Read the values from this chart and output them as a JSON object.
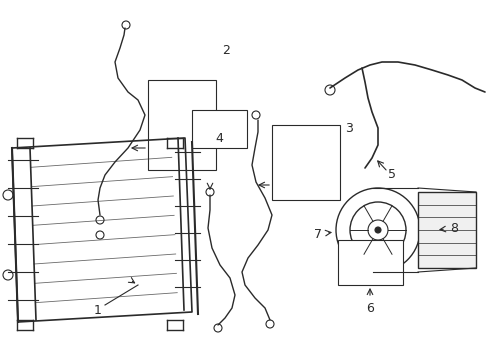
{
  "background_color": "#ffffff",
  "line_color": "#2a2a2a",
  "fig_width": 4.9,
  "fig_height": 3.6,
  "dpi": 100,
  "xlim": [
    0,
    490
  ],
  "ylim": [
    0,
    360
  ]
}
